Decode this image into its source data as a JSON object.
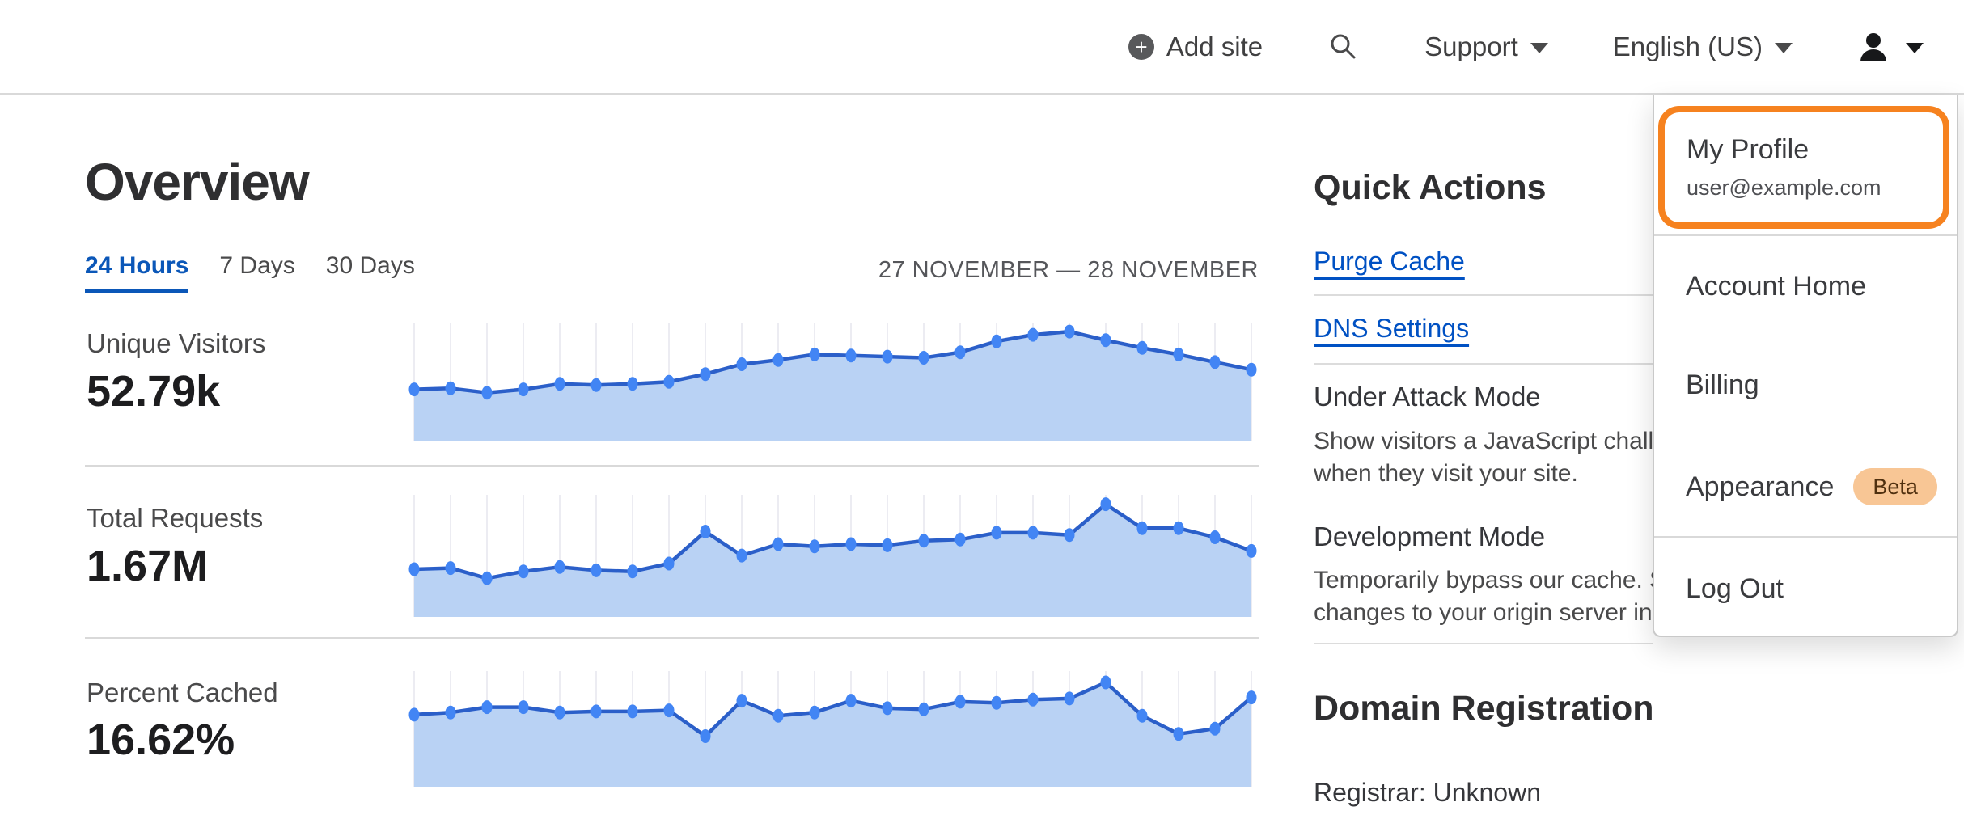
{
  "nav": {
    "add_site_label": "Add site",
    "support_label": "Support",
    "language_label": "English (US)",
    "icons": {
      "add_site": "plus-circle",
      "search": "magnifier",
      "dropdown": "triangle-down-caret",
      "user": "person-silhouette"
    }
  },
  "page": {
    "title": "Overview",
    "tabs": [
      {
        "label": "24 Hours",
        "active": true
      },
      {
        "label": "7 Days",
        "active": false
      },
      {
        "label": "30 Days",
        "active": false
      }
    ],
    "date_range": "27 NOVEMBER — 28 NOVEMBER"
  },
  "stats": [
    {
      "label": "Unique Visitors",
      "value": "52.79k"
    },
    {
      "label": "Total Requests",
      "value": "1.67M"
    },
    {
      "label": "Percent Cached",
      "value": "16.62%"
    }
  ],
  "chart_data": [
    {
      "type": "area",
      "title": "Unique Visitors",
      "total_label": "52.79k",
      "x_period": "27 NOVEMBER — 28 NOVEMBER (hourly, 24 points)",
      "axes_hidden": true,
      "ylim": [
        0,
        1
      ],
      "values": [
        0.44,
        0.45,
        0.41,
        0.44,
        0.49,
        0.48,
        0.49,
        0.51,
        0.58,
        0.67,
        0.71,
        0.76,
        0.75,
        0.74,
        0.73,
        0.78,
        0.88,
        0.94,
        0.97,
        0.89,
        0.82,
        0.76,
        0.69,
        0.62
      ]
    },
    {
      "type": "area",
      "title": "Total Requests",
      "total_label": "1.67M",
      "x_period": "27 NOVEMBER — 28 NOVEMBER (hourly, 24 points)",
      "axes_hidden": true,
      "ylim": [
        0,
        1
      ],
      "values": [
        0.39,
        0.4,
        0.31,
        0.37,
        0.41,
        0.38,
        0.37,
        0.44,
        0.72,
        0.51,
        0.61,
        0.59,
        0.61,
        0.6,
        0.64,
        0.65,
        0.71,
        0.71,
        0.69,
        0.96,
        0.75,
        0.75,
        0.67,
        0.55
      ]
    },
    {
      "type": "area",
      "title": "Percent Cached",
      "total_label": "16.62%",
      "x_period": "27 NOVEMBER — 28 NOVEMBER (hourly, 24 points)",
      "axes_hidden": true,
      "ylim": [
        0,
        1
      ],
      "values": [
        0.64,
        0.66,
        0.71,
        0.71,
        0.66,
        0.67,
        0.67,
        0.68,
        0.44,
        0.77,
        0.63,
        0.66,
        0.77,
        0.7,
        0.69,
        0.76,
        0.75,
        0.78,
        0.79,
        0.94,
        0.63,
        0.46,
        0.51,
        0.8
      ]
    }
  ],
  "chart_style": {
    "line_color": "#2b5fc9",
    "dot_color": "#4285f4",
    "fill_color": "#b9d2f4",
    "gridline_color": "#ececf2"
  },
  "quick_actions": {
    "heading": "Quick Actions",
    "links": [
      {
        "label": "Purge Cache"
      },
      {
        "label": "DNS Settings"
      }
    ],
    "toggles": [
      {
        "title": "Under Attack Mode",
        "desc_line1": "Show visitors a JavaScript challenge",
        "desc_line2": "when they visit your site."
      },
      {
        "title": "Development Mode",
        "desc_line1": "Temporarily bypass our cache. See",
        "desc_line2": "changes to your origin server in real time."
      }
    ]
  },
  "domain_registration": {
    "heading": "Domain Registration",
    "registrar": "Registrar: Unknown"
  },
  "user_menu": {
    "profile_label": "My Profile",
    "profile_email": "user@example.com",
    "items": [
      {
        "label": "Account Home"
      },
      {
        "label": "Billing"
      },
      {
        "label": "Appearance",
        "badge": "Beta"
      },
      {
        "label": "Log Out"
      }
    ]
  },
  "colors": {
    "accent_orange": "#f6821f",
    "link_blue": "#0051c3",
    "active_tab_blue": "#0b57b8",
    "beta_badge_bg": "#f8c695",
    "beta_badge_text": "#50300f"
  }
}
